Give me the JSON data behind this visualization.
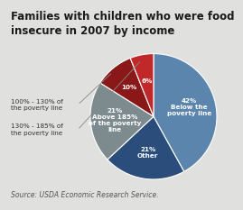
{
  "title": "Families with children who were food\ninsecure in 2007 by income",
  "source": "Source: USDA Economic Research Service.",
  "slices": [
    42,
    21,
    21,
    10,
    6
  ],
  "slice_names": [
    "Below the poverty line",
    "Other",
    "Above 185% of the poverty line",
    "100-130%",
    "130-185%"
  ],
  "labels_inside": [
    "42%\nBelow the\npoverty line",
    "21%\nOther",
    "21%\nAbove 185%\nof the poverty\nline",
    "10%",
    "6%"
  ],
  "colors": [
    "#5b85ad",
    "#2b4d7c",
    "#7d8b8e",
    "#8b1818",
    "#c0282a"
  ],
  "left_annotations": [
    "100% - 130% of\nthe poverty line",
    "130% - 185% of\nthe poverty line"
  ],
  "background_color": "#e0e0df",
  "startangle": 90,
  "title_fontsize": 8.5,
  "source_fontsize": 5.5
}
